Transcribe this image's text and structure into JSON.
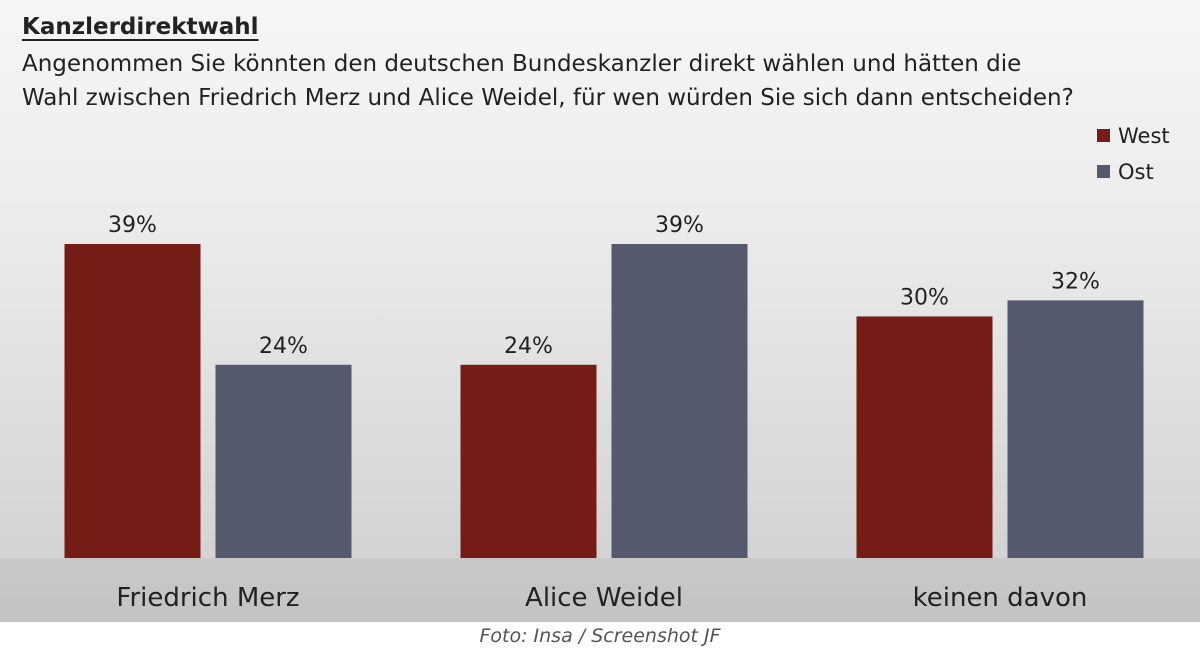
{
  "chart_data": {
    "type": "bar",
    "title": "Kanzlerdirektwahl",
    "subtitle_lines": [
      "Angenommen Sie könnten den deutschen Bundeskanzler direkt wählen und hätten die",
      "Wahl zwischen Friedrich Merz und Alice Weidel, für wen würden Sie sich dann entscheiden?"
    ],
    "categories": [
      "Friedrich Merz",
      "Alice Weidel",
      "keinen davon"
    ],
    "series": [
      {
        "name": "West",
        "color": "#761c16",
        "values": [
          39,
          24,
          30
        ]
      },
      {
        "name": "Ost",
        "color": "#54596d",
        "values": [
          24,
          39,
          32
        ]
      }
    ],
    "value_suffix": "%",
    "ylim": [
      0,
      39
    ],
    "grid": false,
    "legend_position": "top-right"
  },
  "caption": "Foto: Insa / Screenshot JF"
}
